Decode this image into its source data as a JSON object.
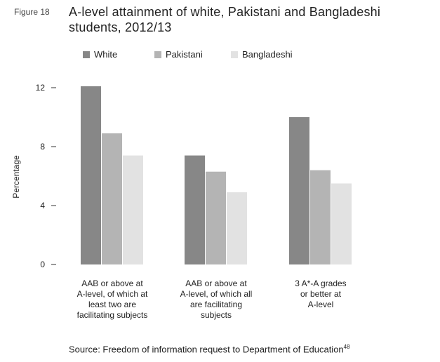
{
  "figure_label": "Figure 18",
  "source": {
    "text": "Source: Freedom of information request to Department of Education",
    "note": "48"
  },
  "chart_data": {
    "type": "bar",
    "title": "A-level attainment of white, Pakistani and Bangladeshi students, 2012/13",
    "ylabel": "Percentage",
    "xlabel": "",
    "ylim": [
      0,
      12
    ],
    "yticks": [
      0,
      4,
      8,
      12
    ],
    "grid": false,
    "legend": "top",
    "categories": [
      [
        "AAB or above at",
        "A-level, of which at",
        "least two are",
        "facilitating subjects"
      ],
      [
        "AAB or above at",
        "A-level, of which all",
        "are facilitating",
        "subjects"
      ],
      [
        "3 A*-A grades",
        "or better at",
        "A-level"
      ]
    ],
    "series": [
      {
        "name": "White",
        "color": "#878787",
        "values": [
          12.1,
          7.4,
          10.0
        ]
      },
      {
        "name": "Pakistani",
        "color": "#b4b4b4",
        "values": [
          8.9,
          6.3,
          6.4
        ]
      },
      {
        "name": "Bangladeshi",
        "color": "#e2e2e2",
        "values": [
          7.4,
          4.9,
          5.5
        ]
      }
    ]
  }
}
